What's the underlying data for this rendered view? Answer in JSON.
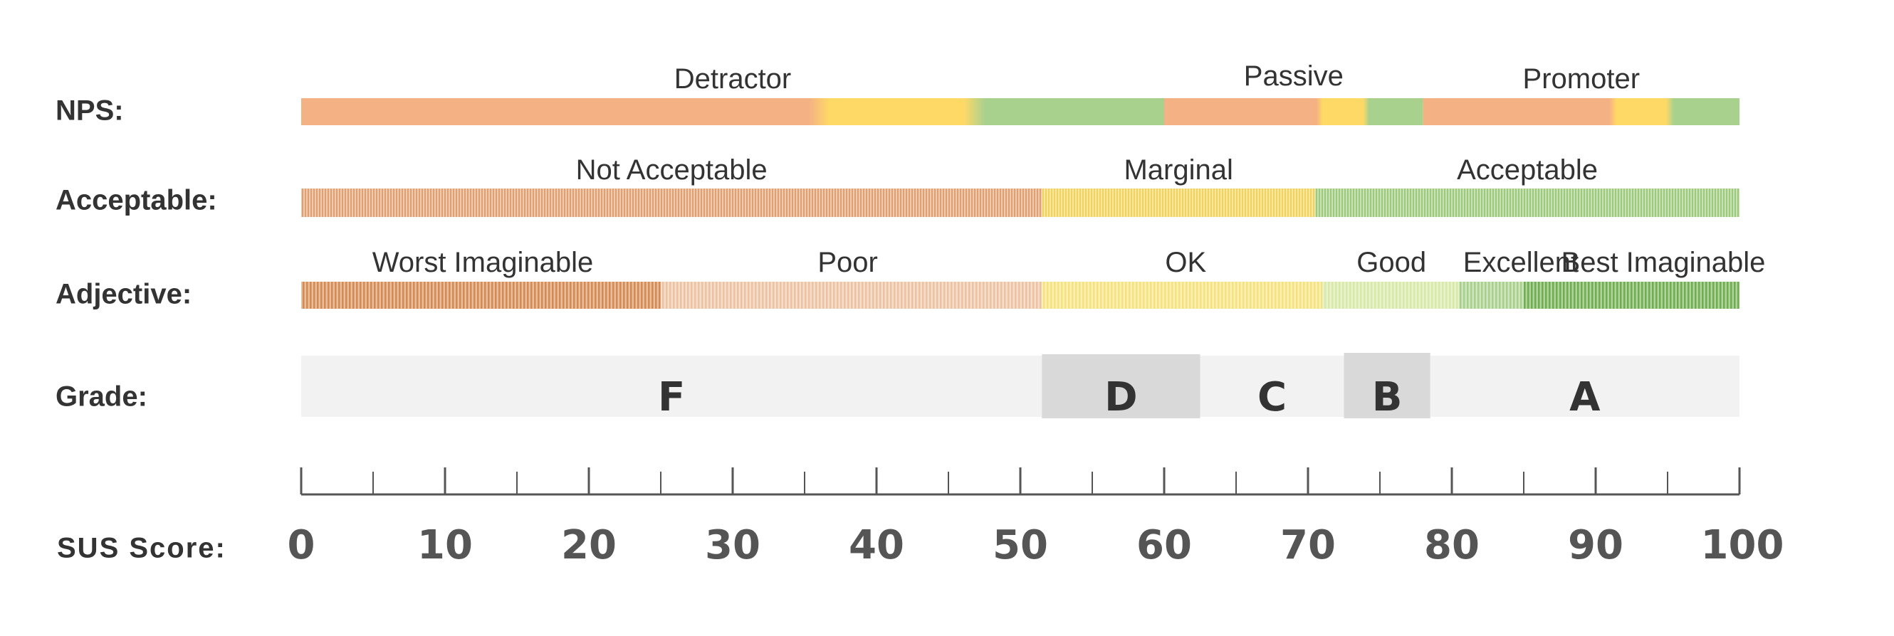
{
  "chart_data": {
    "type": "bar",
    "x_axis": {
      "label": "SUS Score:",
      "range": [
        0,
        100
      ],
      "ticks": [
        0,
        10,
        20,
        30,
        40,
        50,
        60,
        70,
        80,
        90,
        100
      ],
      "minor_tick_step": 5
    },
    "rows": [
      {
        "id": "nps",
        "label": "NPS:",
        "style": "solid",
        "bands": [
          {
            "name": "Detractor",
            "start": 0,
            "end": 60,
            "color": "#f4b183"
          },
          {
            "name": "Passive",
            "start": 60,
            "end": 78,
            "color": "#ffd966"
          },
          {
            "name": "Promoter",
            "start": 78,
            "end": 100,
            "color": "#a9d18e"
          }
        ]
      },
      {
        "id": "acceptable",
        "label": "Acceptable:",
        "style": "hatched",
        "bands": [
          {
            "name": "Not Acceptable",
            "start": 0,
            "end": 51.5,
            "color": "#e0a070"
          },
          {
            "name": "Marginal",
            "start": 51.5,
            "end": 70.5,
            "color": "#f2d35a"
          },
          {
            "name": "Acceptable",
            "start": 70.5,
            "end": 100,
            "color": "#9cc97a"
          }
        ]
      },
      {
        "id": "adjective",
        "label": "Adjective:",
        "style": "hatched",
        "bands": [
          {
            "name": "Worst Imaginable",
            "start": 0,
            "end": 25,
            "color": "#d48a50"
          },
          {
            "name": "Poor",
            "start": 25,
            "end": 51.5,
            "color": "#ecc2a0"
          },
          {
            "name": "OK",
            "start": 51.5,
            "end": 71,
            "color": "#f6e27a"
          },
          {
            "name": "Good",
            "start": 71,
            "end": 80.5,
            "color": "#d6e9a6"
          },
          {
            "name": "Excellent",
            "start": 80.5,
            "end": 85,
            "color": "#a8d08a"
          },
          {
            "name": "Best Imaginable",
            "start": 85,
            "end": 100,
            "color": "#6fae4e"
          }
        ]
      },
      {
        "id": "grade",
        "label": "Grade:",
        "style": "grade",
        "bands": [
          {
            "name": "F",
            "start": 0,
            "end": 51.5,
            "color": "#f2f2f2"
          },
          {
            "name": "D",
            "start": 51.5,
            "end": 62.5,
            "color": "#d9d9d9"
          },
          {
            "name": "C",
            "start": 62.5,
            "end": 72.5,
            "color": "#f2f2f2"
          },
          {
            "name": "B",
            "start": 72.5,
            "end": 78.5,
            "color": "#d9d9d9"
          },
          {
            "name": "A",
            "start": 78.5,
            "end": 100,
            "color": "#f2f2f2"
          }
        ]
      }
    ]
  }
}
